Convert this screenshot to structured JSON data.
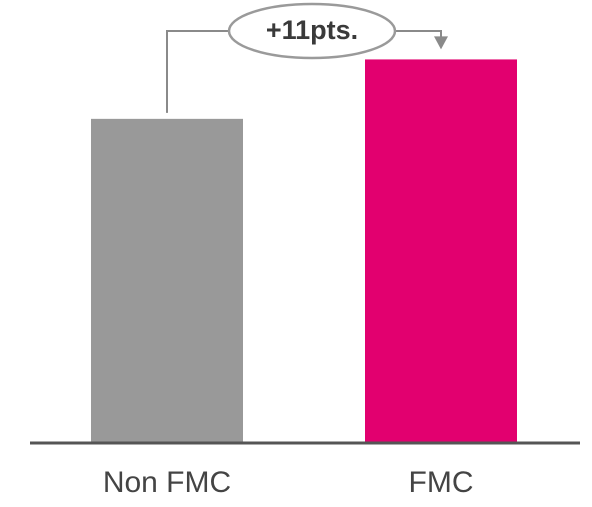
{
  "chart_data": {
    "type": "bar",
    "categories": [
      "Non FMC",
      "FMC"
    ],
    "values": [
      60,
      71
    ],
    "ylim": [
      0,
      82
    ],
    "colors": [
      "#999999",
      "#e2006f"
    ],
    "annotation": {
      "text": "+11pts.",
      "from": "Non FMC",
      "to": "FMC"
    },
    "grid": false,
    "legend": "none"
  }
}
